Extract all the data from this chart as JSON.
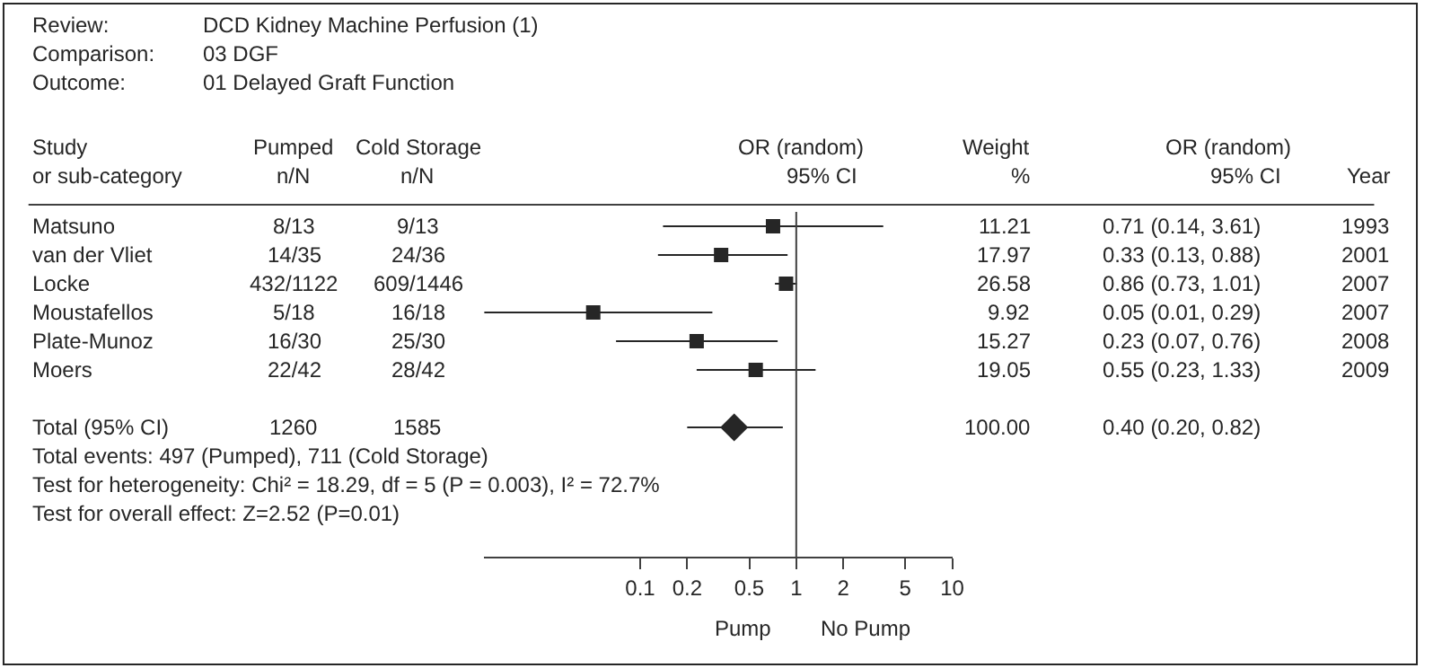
{
  "chart_data": {
    "type": "scatter",
    "orientation": "horizontal",
    "log": "x",
    "y_categories": [
      "Matsuno",
      "van der Vliet",
      "Locke",
      "Moustafellos",
      "Plate-Munoz",
      "Moers",
      null,
      "Total (95% CI)",
      null,
      null,
      null,
      null
    ],
    "series": [
      {
        "type": "scatter",
        "marker": "square",
        "color": "#262626",
        "values": [
          0.71,
          0.33,
          0.86,
          0.05,
          0.23,
          0.55,
          null,
          null,
          null,
          null,
          null,
          null
        ],
        "errors": [
          [
            0.14,
            3.61
          ],
          [
            0.13,
            0.88
          ],
          [
            0.73,
            1.01
          ],
          [
            0.01,
            0.29
          ],
          [
            0.07,
            0.76
          ],
          [
            0.23,
            1.33
          ],
          null,
          null,
          null,
          null,
          null,
          null
        ],
        "value_labels": [
          "0.71 (0.14, 3.61)",
          "0.33 (0.13, 0.88)",
          "0.86 (0.73, 1.01)",
          "0.05 (0.01, 0.29)",
          "0.23 (0.07, 0.76)",
          "0.55 (0.23, 1.33)",
          null,
          null,
          null,
          null,
          null,
          null
        ]
      },
      {
        "type": "scatter",
        "marker": "diamond",
        "color": "#262626",
        "values": [
          null,
          null,
          null,
          null,
          null,
          null,
          null,
          0.4,
          null,
          null,
          null,
          null
        ],
        "errors": [
          null,
          null,
          null,
          null,
          null,
          null,
          null,
          [
            0.2,
            0.82
          ],
          null,
          null,
          null,
          null
        ]
      }
    ],
    "xlim": [
      0.01,
      10
    ],
    "xticks": [
      0.1,
      0.2,
      0.5,
      1,
      2,
      5,
      10
    ],
    "tick_labels": "x",
    "ref_lines": [
      {
        "axis": "x",
        "value": 1,
        "color": "#404040"
      }
    ],
    "annotations": [
      "Review:",
      "DCD Kidney Machine Perfusion (1)",
      "Comparison:",
      "03 DGF",
      "Outcome:",
      "01 Delayed Graft Function",
      "Study",
      "or sub-category",
      "Pumped",
      "n/N",
      "Cold Storage",
      "n/N",
      "OR (random)",
      "95% CI",
      "Weight",
      "%",
      "OR (random)",
      "95% CI",
      "Year",
      "8/13",
      "9/13",
      "11.21",
      "1993",
      "14/35",
      "24/36",
      "17.97",
      "2001",
      "432/1122",
      "609/1446",
      "26.58",
      "2007",
      "5/18",
      "16/18",
      "9.92",
      "2007",
      "16/30",
      "25/30",
      "15.27",
      "2008",
      "22/42",
      "28/42",
      "19.05",
      "2009",
      "1260",
      "1585",
      "100.00",
      "0.40 (0.20, 0.82)",
      "Total events: 497 (Pumped), 711 (Cold Storage)",
      "Test for heterogeneity: Chi² = 18.29, df = 5 (P = 0.003), I² = 72.7%",
      "Test for overall effect: Z=2.52 (P=0.01)",
      "Pump",
      "No Pump"
    ]
  }
}
